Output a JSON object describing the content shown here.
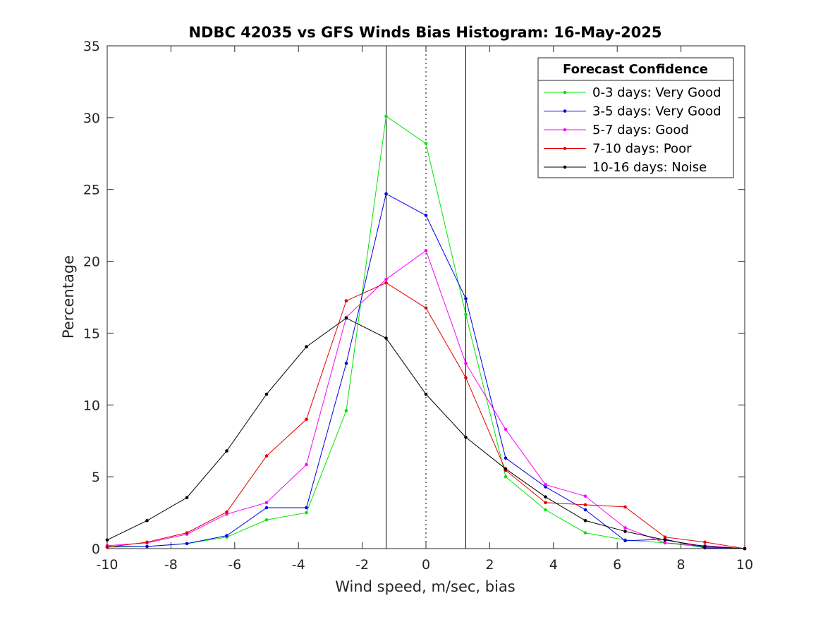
{
  "chart_data": {
    "type": "line",
    "title": "NDBC 42035 vs GFS Winds Bias Histogram: 16-May-2025",
    "xlabel": "Wind speed, m/sec, bias",
    "ylabel": "Percentage",
    "xlim": [
      -10,
      10
    ],
    "ylim": [
      0,
      35
    ],
    "xticks": [
      -10,
      -8,
      -6,
      -4,
      -2,
      0,
      2,
      4,
      6,
      8,
      10
    ],
    "yticks": [
      0,
      5,
      10,
      15,
      20,
      25,
      30,
      35
    ],
    "grid": false,
    "reference_lines": [
      {
        "x": -1.25,
        "style": "solid"
      },
      {
        "x": 0,
        "style": "dotted"
      },
      {
        "x": 1.25,
        "style": "solid"
      }
    ],
    "legend": {
      "title": "Forecast Confidence",
      "placement": "top-right"
    },
    "x": [
      -10,
      -8.75,
      -7.5,
      -6.25,
      -5,
      -3.75,
      -2.5,
      -1.25,
      0,
      1.25,
      2.5,
      3.75,
      5,
      6.25,
      7.5,
      8.75,
      10
    ],
    "series": [
      {
        "name": "0-3 days: Very Good",
        "color": "#00e600",
        "values": [
          0.1,
          0.15,
          0.35,
          0.8,
          2.0,
          2.5,
          9.6,
          30.1,
          28.2,
          16.3,
          5.0,
          2.7,
          1.1,
          0.6,
          0.4,
          0.1,
          0.0
        ]
      },
      {
        "name": "3-5 days: Very Good",
        "color": "#0000e6",
        "values": [
          0.15,
          0.15,
          0.35,
          0.9,
          2.85,
          2.85,
          12.9,
          24.7,
          23.2,
          17.4,
          6.3,
          4.3,
          2.7,
          0.55,
          0.65,
          0.05,
          0.0
        ]
      },
      {
        "name": "5-7 days: Good",
        "color": "#ff00ff",
        "values": [
          0.2,
          0.4,
          1.0,
          2.4,
          3.2,
          5.85,
          16.1,
          18.75,
          20.75,
          12.9,
          8.3,
          4.45,
          3.65,
          1.45,
          0.4,
          0.2,
          0.0
        ]
      },
      {
        "name": "7-10 days: Poor",
        "color": "#e60000",
        "values": [
          0.1,
          0.45,
          1.1,
          2.55,
          6.45,
          9.0,
          17.25,
          18.5,
          16.75,
          11.9,
          5.45,
          3.2,
          3.05,
          2.9,
          0.8,
          0.45,
          0.0
        ]
      },
      {
        "name": "10-16 days: Noise",
        "color": "#000000",
        "values": [
          0.6,
          1.95,
          3.55,
          6.8,
          10.75,
          14.05,
          16.05,
          14.65,
          10.75,
          7.75,
          5.55,
          3.6,
          1.95,
          1.2,
          0.6,
          0.15,
          0.0
        ]
      }
    ]
  }
}
